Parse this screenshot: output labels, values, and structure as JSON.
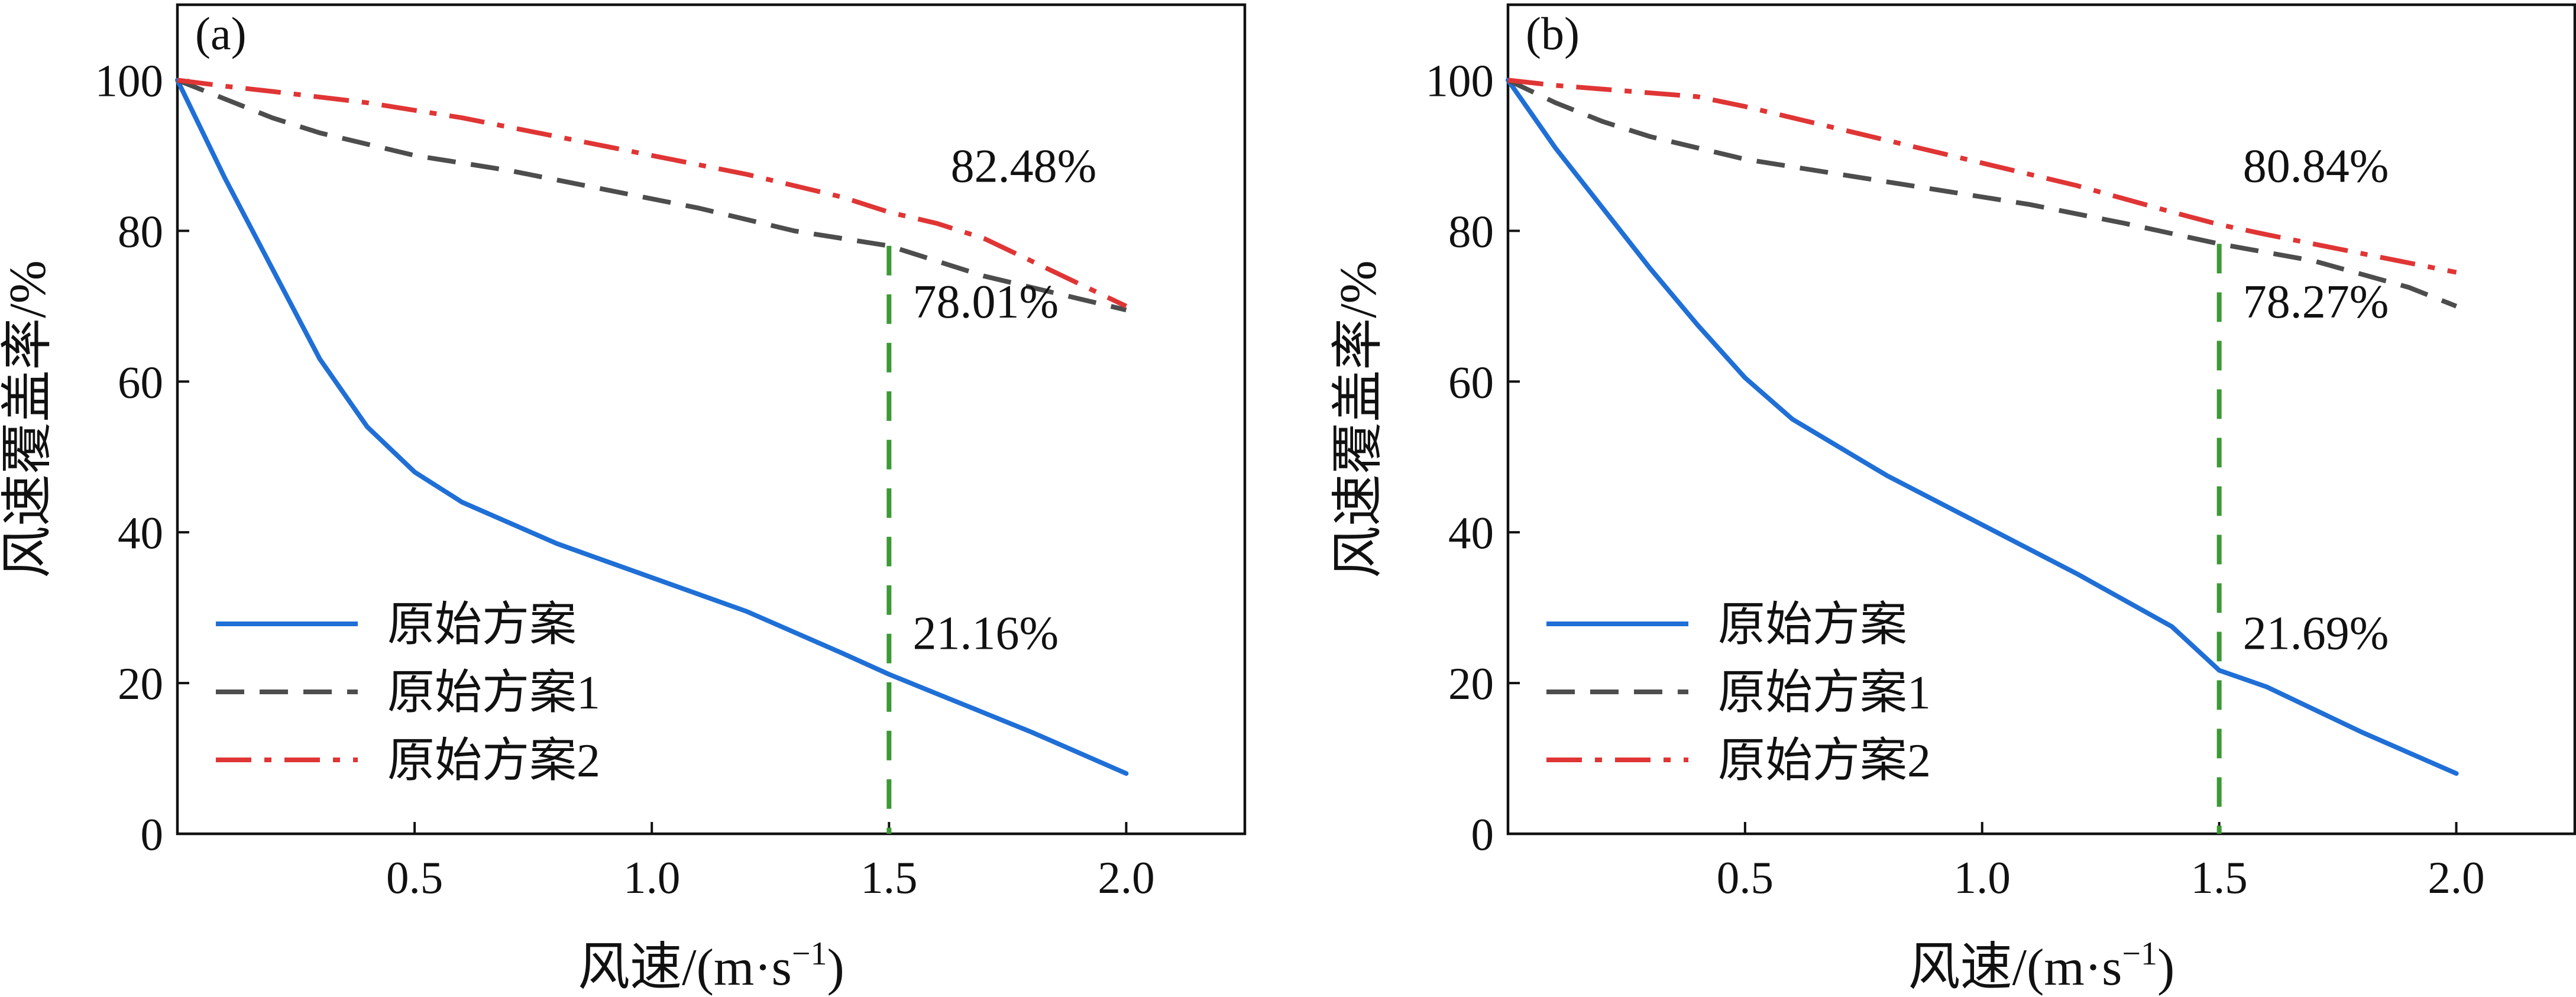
{
  "chart_data": [
    {
      "type": "line",
      "panel_label": "(a)",
      "xlabel": "风速/(m·s",
      "xlabel_sup": "−1",
      "xlabel_end": ")",
      "ylabel": "风速覆盖率/%",
      "xlim": [
        0,
        2.25
      ],
      "ylim": [
        0,
        110
      ],
      "xticks": [
        0.5,
        1.0,
        1.5,
        2.0
      ],
      "xtick_labels": [
        "0.5",
        "1.0",
        "1.5",
        "2.0"
      ],
      "yticks": [
        0,
        20,
        40,
        60,
        80,
        100
      ],
      "ytick_labels": [
        "0",
        "20",
        "40",
        "60",
        "80",
        "100"
      ],
      "grid": false,
      "legend_position": "bottom-left",
      "series": [
        {
          "name": "原始方案",
          "color": "#1f6fd6",
          "style": "solid",
          "x": [
            0,
            0.1,
            0.2,
            0.3,
            0.4,
            0.5,
            0.6,
            0.8,
            1.0,
            1.2,
            1.4,
            1.5,
            1.6,
            1.8,
            2.0
          ],
          "y": [
            100,
            87,
            75,
            63,
            54,
            48,
            44,
            38.5,
            34,
            29.5,
            24,
            21.16,
            18.6,
            13.5,
            8
          ]
        },
        {
          "name": "原始方案1",
          "color": "#4d4d4d",
          "style": "dashed",
          "x": [
            0,
            0.1,
            0.2,
            0.3,
            0.5,
            0.7,
            0.9,
            1.1,
            1.3,
            1.5,
            1.7,
            1.9,
            2.0
          ],
          "y": [
            100,
            97.5,
            95,
            93,
            90,
            88,
            85.5,
            83,
            80,
            78.01,
            74,
            71,
            69.5
          ]
        },
        {
          "name": "原始方案2",
          "color": "#e03535",
          "style": "dashdot",
          "x": [
            0,
            0.1,
            0.2,
            0.4,
            0.6,
            0.8,
            1.0,
            1.2,
            1.4,
            1.5,
            1.6,
            1.7,
            1.8,
            1.9,
            2.0
          ],
          "y": [
            100,
            99.2,
            98.5,
            97,
            95,
            92.5,
            90,
            87.5,
            84.5,
            82.48,
            81,
            79,
            76,
            73,
            70
          ]
        }
      ],
      "marker_x": 1.5,
      "marker_color": "#3c9a35",
      "annotations": [
        {
          "text": "82.48%",
          "x": 1.63,
          "y": 86.5
        },
        {
          "text": "78.01%",
          "x": 1.55,
          "y": 68.5
        },
        {
          "text": "21.16%",
          "x": 1.55,
          "y": 24.5
        }
      ]
    },
    {
      "type": "line",
      "panel_label": "(b)",
      "xlabel": "风速/(m·s",
      "xlabel_sup": "−1",
      "xlabel_end": ")",
      "ylabel": "风速覆盖率/%",
      "xlim": [
        0,
        2.25
      ],
      "ylim": [
        0,
        110
      ],
      "xticks": [
        0.5,
        1.0,
        1.5,
        2.0
      ],
      "xtick_labels": [
        "0.5",
        "1.0",
        "1.5",
        "2.0"
      ],
      "yticks": [
        0,
        20,
        40,
        60,
        80,
        100
      ],
      "ytick_labels": [
        "0",
        "20",
        "40",
        "60",
        "80",
        "100"
      ],
      "grid": false,
      "legend_position": "bottom-left",
      "series": [
        {
          "name": "原始方案",
          "color": "#1f6fd6",
          "style": "solid",
          "x": [
            0,
            0.1,
            0.2,
            0.3,
            0.4,
            0.5,
            0.6,
            0.8,
            1.0,
            1.2,
            1.4,
            1.5,
            1.6,
            1.8,
            2.0
          ],
          "y": [
            100,
            91,
            83,
            75,
            67.5,
            60.5,
            55,
            47.5,
            41,
            34.5,
            27.5,
            21.69,
            19.5,
            13.5,
            8
          ]
        },
        {
          "name": "原始方案1",
          "color": "#4d4d4d",
          "style": "dashed",
          "x": [
            0,
            0.1,
            0.2,
            0.3,
            0.5,
            0.7,
            0.9,
            1.1,
            1.3,
            1.5,
            1.7,
            1.9,
            2.0
          ],
          "y": [
            100,
            97,
            94.5,
            92.5,
            89.5,
            87.5,
            85.5,
            83.5,
            81,
            78.27,
            76,
            72.5,
            70
          ]
        },
        {
          "name": "原始方案2",
          "color": "#e03535",
          "style": "dashdot",
          "x": [
            0,
            0.1,
            0.2,
            0.4,
            0.5,
            0.6,
            0.8,
            1.0,
            1.2,
            1.4,
            1.5,
            1.6,
            1.8,
            2.0
          ],
          "y": [
            100,
            99.3,
            98.8,
            97.8,
            96.5,
            95,
            92,
            89,
            86,
            82.5,
            80.84,
            79.5,
            77,
            74.5
          ]
        }
      ],
      "marker_x": 1.5,
      "marker_color": "#3c9a35",
      "annotations": [
        {
          "text": "80.84%",
          "x": 1.55,
          "y": 86.5
        },
        {
          "text": "78.27%",
          "x": 1.55,
          "y": 68.5
        },
        {
          "text": "21.69%",
          "x": 1.55,
          "y": 24.5
        }
      ]
    }
  ]
}
